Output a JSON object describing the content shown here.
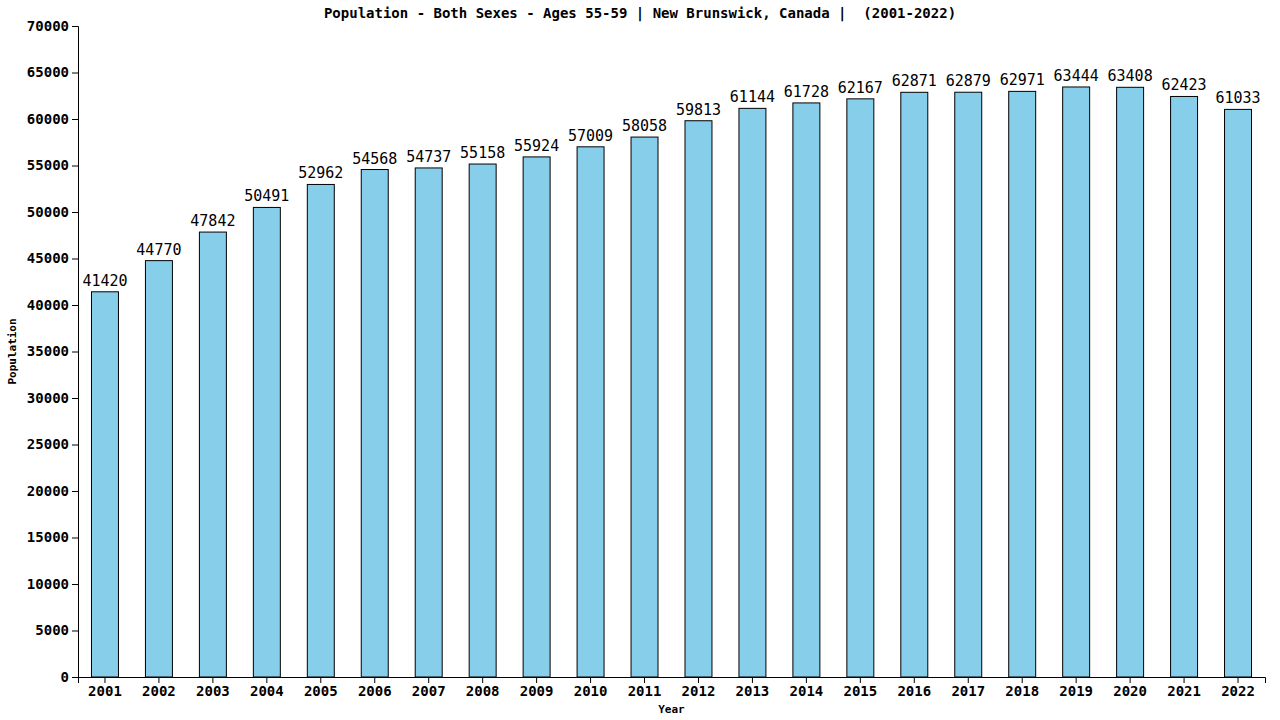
{
  "chart_data": {
    "type": "bar",
    "title": "Population - Both Sexes - Ages 55-59 | New Brunswick, Canada |  (2001-2022)",
    "x_label": "Year",
    "y_label": "Population",
    "categories": [
      "2001",
      "2002",
      "2003",
      "2004",
      "2005",
      "2006",
      "2007",
      "2008",
      "2009",
      "2010",
      "2011",
      "2012",
      "2013",
      "2014",
      "2015",
      "2016",
      "2017",
      "2018",
      "2019",
      "2020",
      "2021",
      "2022"
    ],
    "values": [
      41420,
      44770,
      47842,
      50491,
      52962,
      54568,
      54737,
      55158,
      55924,
      57009,
      58058,
      59813,
      61144,
      61728,
      62167,
      62871,
      62879,
      62971,
      63444,
      63408,
      62423,
      61033
    ],
    "color": "#87ceeb",
    "ylim": [
      0,
      70000
    ],
    "yticks": [
      0,
      5000,
      10000,
      15000,
      20000,
      25000,
      30000,
      35000,
      40000,
      45000,
      50000,
      55000,
      60000,
      65000,
      70000
    ],
    "grid": false,
    "data_labels": true
  }
}
